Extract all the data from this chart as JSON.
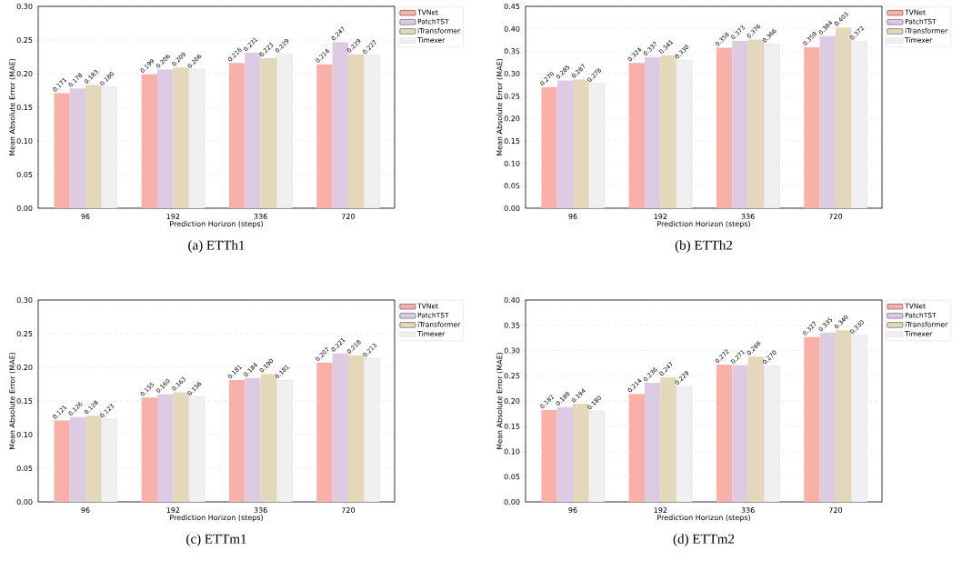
{
  "chart_data": [
    {
      "type": "bar",
      "title": "(a) ETTh1",
      "xlabel": "Prediction Horizon (steps)",
      "ylabel": "Mean Absolute Error (MAE)",
      "categories": [
        "96",
        "192",
        "336",
        "720"
      ],
      "ylim": [
        0,
        0.3
      ],
      "yticks": [
        {
          "value": 0,
          "label": "0.00"
        },
        {
          "value": 0.05,
          "label": "0.05"
        },
        {
          "value": 0.1,
          "label": "0.10"
        },
        {
          "value": 0.15,
          "label": "0.15"
        },
        {
          "value": 0.2,
          "label": "0.20"
        },
        {
          "value": 0.25,
          "label": "0.25"
        },
        {
          "value": 0.3,
          "label": "0.30"
        }
      ],
      "grid": "y",
      "legend": "right",
      "series": [
        {
          "name": "TVNet",
          "color": "#f8b0a9",
          "values": [
            0.171,
            0.199,
            0.216,
            0.214
          ],
          "value_labels": [
            "0.171",
            "0.199",
            "0.216",
            "0.214"
          ]
        },
        {
          "name": "PatchTST",
          "color": "#dccbe3",
          "values": [
            0.178,
            0.206,
            0.231,
            0.247
          ],
          "value_labels": [
            "0.178",
            "0.206",
            "0.231",
            "0.247"
          ]
        },
        {
          "name": "iTransformer",
          "color": "#e5d7ba",
          "values": [
            0.183,
            0.209,
            0.223,
            0.229
          ],
          "value_labels": [
            "0.183",
            "0.209",
            "0.223",
            "0.229"
          ]
        },
        {
          "name": "Timexer",
          "color": "#f0f0f0",
          "values": [
            0.18,
            0.206,
            0.229,
            0.227
          ],
          "value_labels": [
            "0.180",
            "0.206",
            "0.229",
            "0.227"
          ]
        }
      ]
    },
    {
      "type": "bar",
      "title": "(b) ETTh2",
      "xlabel": "Prediction Horizon (steps)",
      "ylabel": "Mean Absolute Error (MAE)",
      "categories": [
        "96",
        "192",
        "336",
        "720"
      ],
      "ylim": [
        0,
        0.45
      ],
      "yticks": [
        {
          "value": 0,
          "label": "0.00"
        },
        {
          "value": 0.05,
          "label": "0.05"
        },
        {
          "value": 0.1,
          "label": "0.10"
        },
        {
          "value": 0.15,
          "label": "0.15"
        },
        {
          "value": 0.2,
          "label": "0.20"
        },
        {
          "value": 0.25,
          "label": "0.25"
        },
        {
          "value": 0.3,
          "label": "0.30"
        },
        {
          "value": 0.35,
          "label": "0.35"
        },
        {
          "value": 0.4,
          "label": "0.40"
        },
        {
          "value": 0.45,
          "label": "0.45"
        }
      ],
      "grid": "y",
      "legend": "right",
      "series": [
        {
          "name": "TVNet",
          "color": "#f8b0a9",
          "values": [
            0.27,
            0.324,
            0.358,
            0.359
          ],
          "value_labels": [
            "0.270",
            "0.324",
            "0.358",
            "0.359"
          ]
        },
        {
          "name": "PatchTST",
          "color": "#dccbe3",
          "values": [
            0.285,
            0.337,
            0.373,
            0.384
          ],
          "value_labels": [
            "0.285",
            "0.337",
            "0.373",
            "0.384"
          ]
        },
        {
          "name": "iTransformer",
          "color": "#e5d7ba",
          "values": [
            0.287,
            0.341,
            0.376,
            0.403
          ],
          "value_labels": [
            "0.287",
            "0.341",
            "0.376",
            "0.403"
          ]
        },
        {
          "name": "Timexer",
          "color": "#f0f0f0",
          "values": [
            0.278,
            0.33,
            0.366,
            0.372
          ],
          "value_labels": [
            "0.278",
            "0.330",
            "0.366",
            "0.372"
          ]
        }
      ]
    },
    {
      "type": "bar",
      "title": "(c) ETTm1",
      "xlabel": "Prediction Horizon (steps)",
      "ylabel": "Mean Absolute Error (MAE)",
      "categories": [
        "96",
        "192",
        "336",
        "720"
      ],
      "ylim": [
        0,
        0.3
      ],
      "yticks": [
        {
          "value": 0,
          "label": "0.00"
        },
        {
          "value": 0.05,
          "label": "0.05"
        },
        {
          "value": 0.1,
          "label": "0.10"
        },
        {
          "value": 0.15,
          "label": "0.15"
        },
        {
          "value": 0.2,
          "label": "0.20"
        },
        {
          "value": 0.25,
          "label": "0.25"
        },
        {
          "value": 0.3,
          "label": "0.30"
        }
      ],
      "grid": "y",
      "legend": "right",
      "series": [
        {
          "name": "TVNet",
          "color": "#f8b0a9",
          "values": [
            0.121,
            0.155,
            0.181,
            0.207
          ],
          "value_labels": [
            "0.121",
            "0.155",
            "0.181",
            "0.207"
          ]
        },
        {
          "name": "PatchTST",
          "color": "#dccbe3",
          "values": [
            0.126,
            0.16,
            0.184,
            0.221
          ],
          "value_labels": [
            "0.126",
            "0.160",
            "0.184",
            "0.221"
          ]
        },
        {
          "name": "iTransformer",
          "color": "#e5d7ba",
          "values": [
            0.128,
            0.163,
            0.19,
            0.218
          ],
          "value_labels": [
            "0.128",
            "0.163",
            "0.190",
            "0.218"
          ]
        },
        {
          "name": "Timexer",
          "color": "#f0f0f0",
          "values": [
            0.123,
            0.156,
            0.181,
            0.213
          ],
          "value_labels": [
            "0.123",
            "0.156",
            "0.181",
            "0.213"
          ]
        }
      ]
    },
    {
      "type": "bar",
      "title": "(d) ETTm2",
      "xlabel": "Prediction Horizon (steps)",
      "ylabel": "Mean Absolute Error (MAE)",
      "categories": [
        "96",
        "192",
        "336",
        "720"
      ],
      "ylim": [
        0,
        0.4
      ],
      "yticks": [
        {
          "value": 0,
          "label": "0.00"
        },
        {
          "value": 0.05,
          "label": "0.05"
        },
        {
          "value": 0.1,
          "label": "0.10"
        },
        {
          "value": 0.15,
          "label": "0.15"
        },
        {
          "value": 0.2,
          "label": "0.20"
        },
        {
          "value": 0.25,
          "label": "0.25"
        },
        {
          "value": 0.3,
          "label": "0.30"
        },
        {
          "value": 0.35,
          "label": "0.35"
        },
        {
          "value": 0.4,
          "label": "0.40"
        }
      ],
      "grid": "y",
      "legend": "right",
      "series": [
        {
          "name": "TVNet",
          "color": "#f8b0a9",
          "values": [
            0.182,
            0.214,
            0.272,
            0.327
          ],
          "value_labels": [
            "0.182",
            "0.214",
            "0.272",
            "0.327"
          ]
        },
        {
          "name": "PatchTST",
          "color": "#dccbe3",
          "values": [
            0.188,
            0.236,
            0.271,
            0.335
          ],
          "value_labels": [
            "0.188",
            "0.236",
            "0.271",
            "0.335"
          ]
        },
        {
          "name": "iTransformer",
          "color": "#e5d7ba",
          "values": [
            0.194,
            0.247,
            0.288,
            0.34
          ],
          "value_labels": [
            "0.194",
            "0.247",
            "0.288",
            "0.340"
          ]
        },
        {
          "name": "Timexer",
          "color": "#f0f0f0",
          "values": [
            0.18,
            0.229,
            0.27,
            0.33
          ],
          "value_labels": [
            "0.180",
            "0.229",
            "0.270",
            "0.330"
          ]
        }
      ]
    }
  ]
}
